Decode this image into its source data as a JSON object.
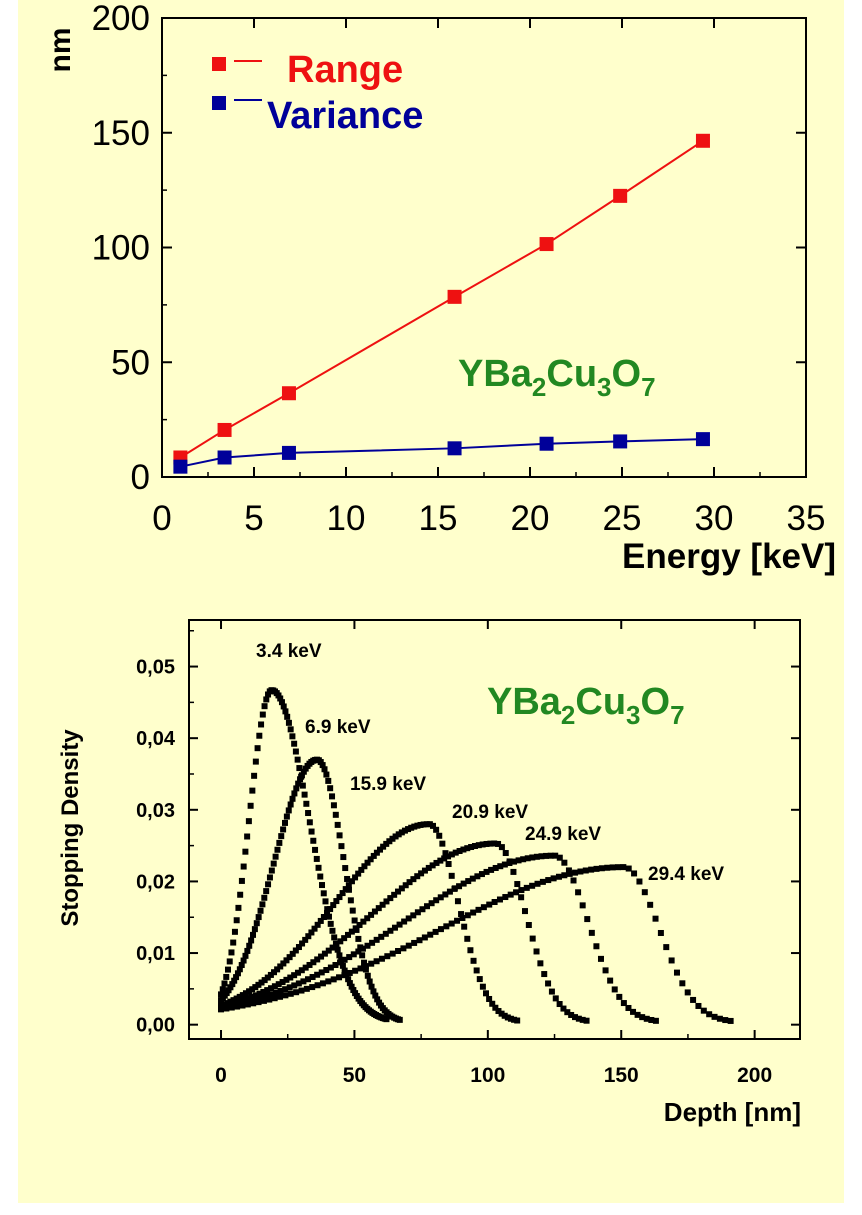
{
  "chart_data": [
    {
      "type": "line",
      "xlabel": "Energy [keV]",
      "ylabel": "nm",
      "xlim": [
        0,
        35
      ],
      "ylim": [
        0,
        200
      ],
      "x_ticks": [
        "0",
        "5",
        "10",
        "15",
        "20",
        "25",
        "30",
        "35"
      ],
      "y_ticks": [
        "0",
        "50",
        "100",
        "150",
        "200"
      ],
      "annotation": {
        "base": "YBa",
        "s1": "2",
        "mid1": "Cu",
        "s2": "3",
        "mid2": "O",
        "s3": "7"
      },
      "legend_position": "top-left",
      "series": [
        {
          "name": "Range",
          "color": "#ee1111",
          "x": [
            1.0,
            3.4,
            6.9,
            15.9,
            20.9,
            24.9,
            29.4
          ],
          "y": [
            8.5,
            20.5,
            36.5,
            78.5,
            101.5,
            122.5,
            146.5
          ]
        },
        {
          "name": "Variance",
          "color": "#000099",
          "x": [
            1.0,
            3.4,
            6.9,
            15.9,
            20.9,
            24.9,
            29.4
          ],
          "y": [
            4.5,
            8.5,
            10.5,
            12.5,
            14.5,
            15.5,
            16.5
          ]
        }
      ]
    },
    {
      "type": "scatter",
      "xlabel": "Depth [nm]",
      "ylabel": "Stopping Density",
      "xlim": [
        -12,
        217
      ],
      "ylim": [
        -0.002,
        0.0565
      ],
      "x_ticks": [
        "0",
        "50",
        "100",
        "150",
        "200"
      ],
      "y_ticks": [
        "0,00",
        "0,01",
        "0,02",
        "0,03",
        "0,04",
        "0,05"
      ],
      "annotation": {
        "base": "YBa",
        "s1": "2",
        "mid1": "Cu",
        "s2": "3",
        "mid2": "O",
        "s3": "7"
      },
      "series": [
        {
          "name": "3.4 keV",
          "peak_x": 19,
          "peak_y": 0.0467,
          "x_max": 62
        },
        {
          "name": "6.9 keV",
          "peak_x": 36,
          "peak_y": 0.037,
          "x_max": 67
        },
        {
          "name": "15.9 keV",
          "peak_x": 78,
          "peak_y": 0.028,
          "x_max": 111
        },
        {
          "name": "20.9 keV",
          "peak_x": 103,
          "peak_y": 0.0253,
          "x_max": 137
        },
        {
          "name": "24.9 keV",
          "peak_x": 125,
          "peak_y": 0.0236,
          "x_max": 163
        },
        {
          "name": "29.4 keV",
          "peak_x": 151,
          "peak_y": 0.022,
          "x_max": 191
        }
      ]
    }
  ]
}
